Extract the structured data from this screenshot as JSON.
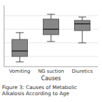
{
  "chart_data": {
    "type": "box",
    "categories": [
      "Vomiting",
      "NG suction",
      "Diuretics"
    ],
    "boxes": [
      {
        "q1": 2.0,
        "median": 2.8,
        "q3": 4.5,
        "whislo": 1.2,
        "whishi": 5.5
      },
      {
        "q1": 5.2,
        "median": 6.0,
        "q3": 7.5,
        "whislo": 4.2,
        "whishi": 8.2
      },
      {
        "q1": 5.8,
        "median": 6.8,
        "q3": 7.3,
        "whislo": 4.0,
        "whishi": 7.8
      }
    ],
    "xlabel": "Causes",
    "caption": "Figure 3: Causes of Metabolic Alkalosis According to Age",
    "ylim": [
      0.5,
      9.5
    ],
    "yticks": [
      2,
      4,
      6,
      8
    ],
    "grid": true,
    "tick_labels": "x",
    "color": "#878787"
  }
}
